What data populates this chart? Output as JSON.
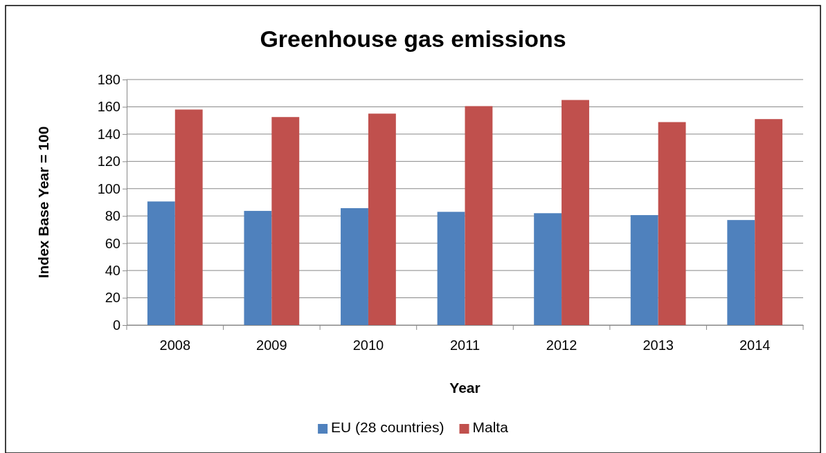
{
  "chart_data": {
    "type": "bar",
    "title": "Greenhouse gas emissions",
    "xlabel": "Year",
    "ylabel": "Index Base Year = 100",
    "categories": [
      "2008",
      "2009",
      "2010",
      "2011",
      "2012",
      "2013",
      "2014"
    ],
    "series": [
      {
        "name": "EU (28 countries)",
        "color": "#4f81bd",
        "values": [
          90.6,
          83.7,
          85.7,
          83,
          82,
          80.6,
          77
        ]
      },
      {
        "name": "Malta",
        "color": "#c0504d",
        "values": [
          158,
          152.5,
          155,
          160.5,
          165,
          148.8,
          151
        ]
      }
    ],
    "ylim": [
      0,
      180
    ],
    "yticks": [
      0,
      20,
      40,
      60,
      80,
      100,
      120,
      140,
      160,
      180
    ],
    "grid": "y",
    "legend": "bottom"
  }
}
